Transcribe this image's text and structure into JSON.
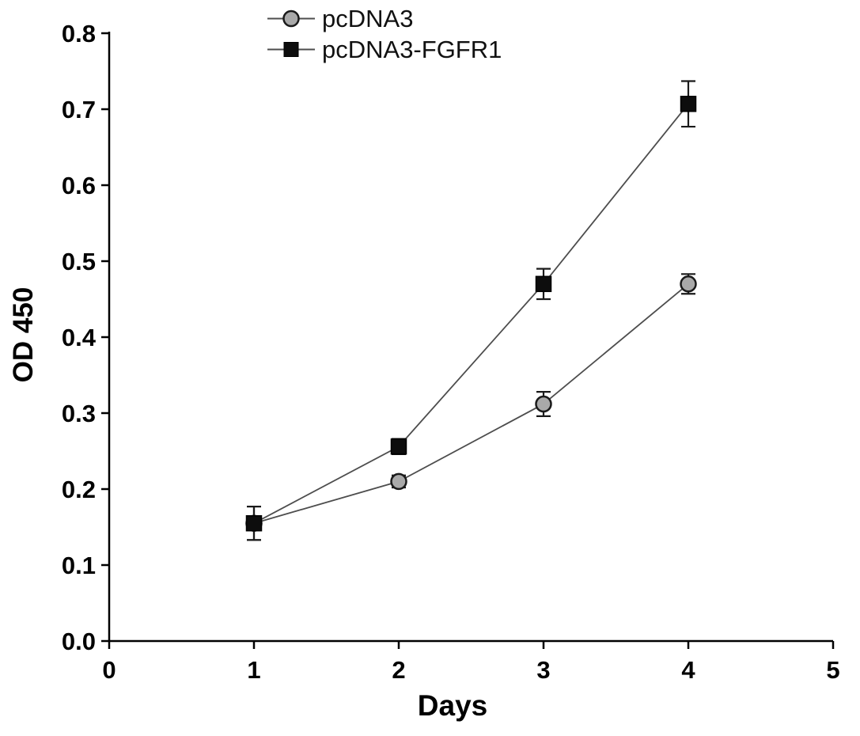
{
  "figure": {
    "background": "#ffffff",
    "axis_color": "#000000",
    "line_color": "#4d4d4d",
    "error_bar_color": "#1a1a1a"
  },
  "chart_data": {
    "type": "line",
    "x": [
      1,
      2,
      3,
      4
    ],
    "series": [
      {
        "name": "pcDNA3",
        "marker": "circle",
        "marker_fill": "#a9a9a9",
        "marker_stroke": "#1a1a1a",
        "values": [
          0.155,
          0.21,
          0.312,
          0.47
        ],
        "errors": [
          0.022,
          0.008,
          0.016,
          0.013
        ]
      },
      {
        "name": "pcDNA3-FGFR1",
        "marker": "square",
        "marker_fill": "#0d0d0d",
        "marker_stroke": "#000000",
        "values": [
          0.155,
          0.256,
          0.47,
          0.707
        ],
        "errors": [
          0.022,
          0.01,
          0.02,
          0.03
        ]
      }
    ],
    "xlabel": "Days",
    "ylabel": "OD 450",
    "xlim": [
      0,
      5
    ],
    "ylim": [
      0.0,
      0.8
    ],
    "x_ticks": [
      0,
      1,
      2,
      3,
      4,
      5
    ],
    "y_ticks": [
      0.0,
      0.1,
      0.2,
      0.3,
      0.4,
      0.5,
      0.6,
      0.7,
      0.8
    ],
    "grid": false,
    "legend_position": "top-center"
  }
}
